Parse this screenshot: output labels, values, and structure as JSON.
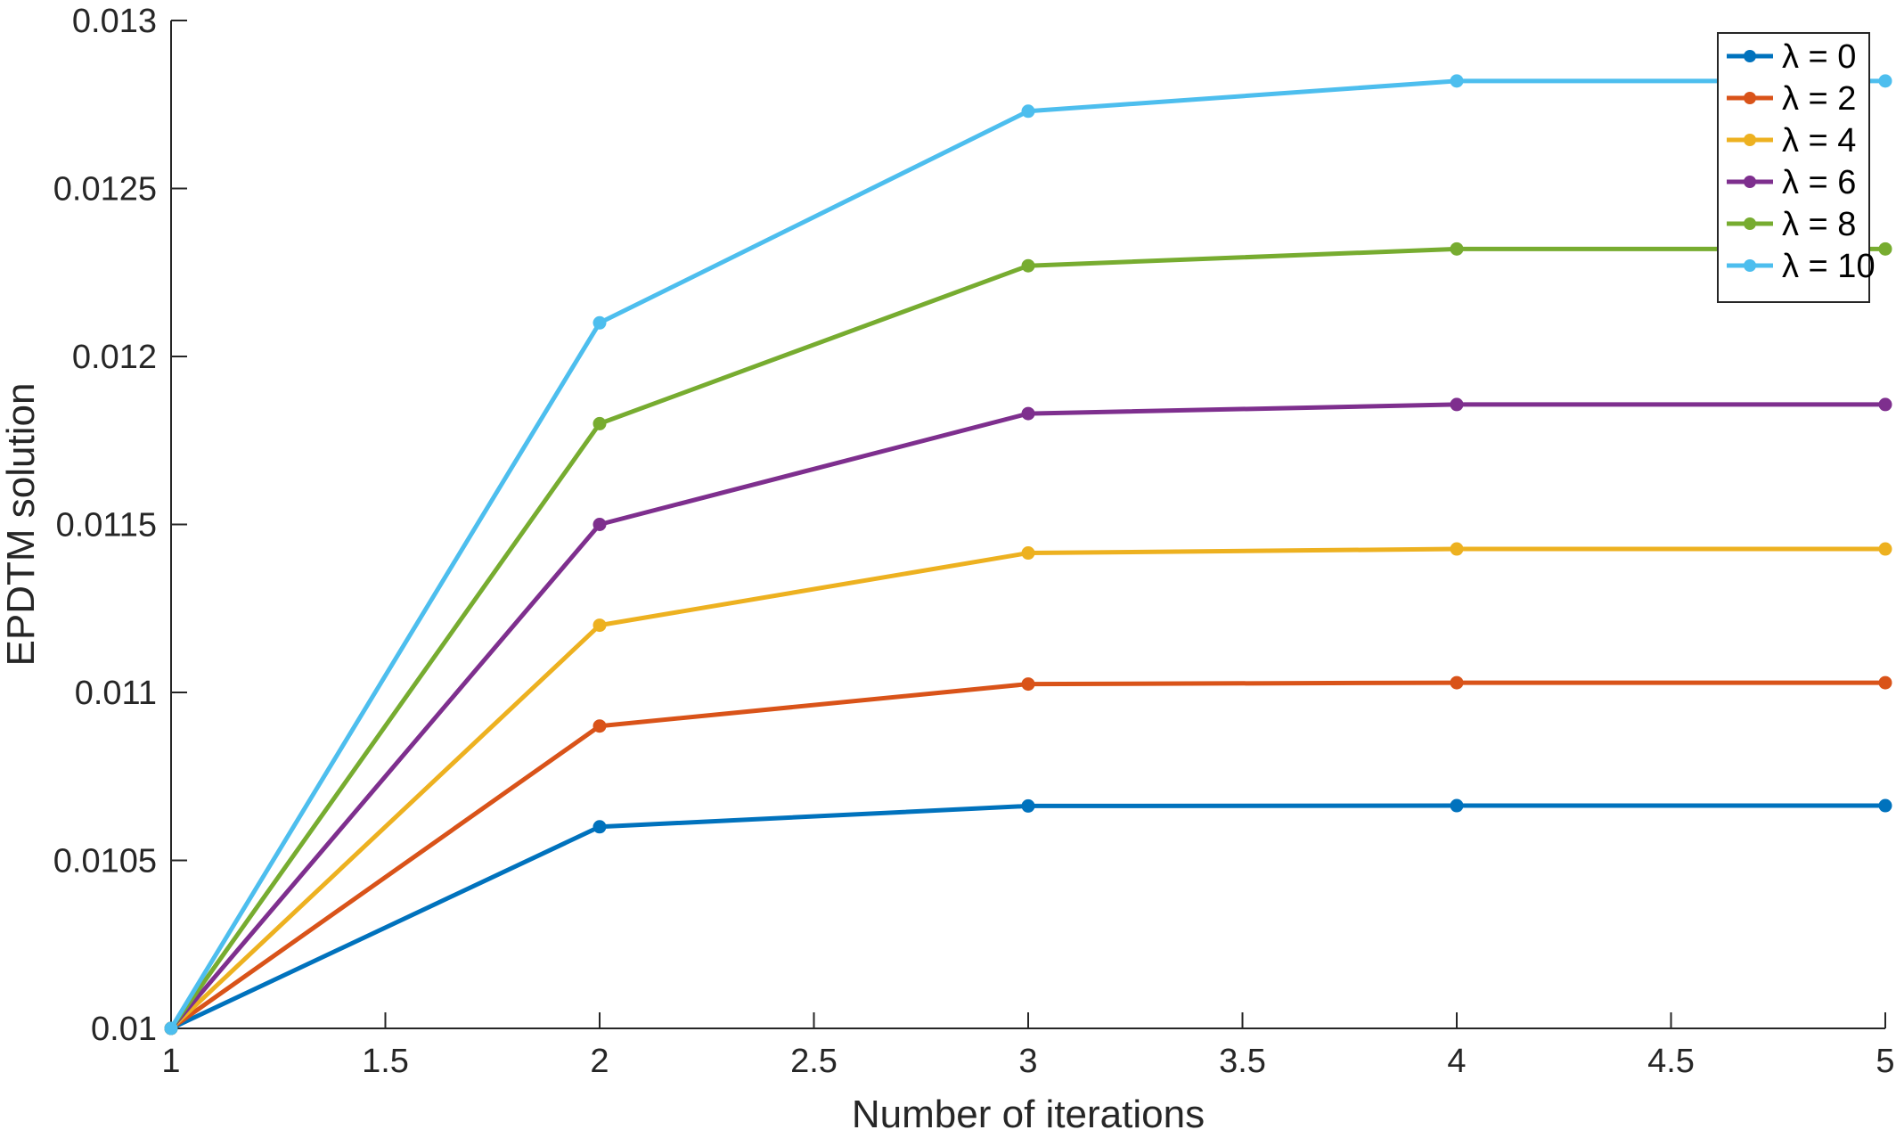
{
  "chart_data": {
    "type": "line",
    "title": "",
    "xlabel": "Number of iterations",
    "ylabel": "EPDTM solution",
    "x": [
      1,
      2,
      3,
      4,
      5
    ],
    "xlim": [
      1,
      5
    ],
    "ylim": [
      0.01,
      0.013
    ],
    "xticks": [
      1,
      1.5,
      2,
      2.5,
      3,
      3.5,
      4,
      4.5,
      5
    ],
    "xtick_labels": [
      "1",
      "1.5",
      "2",
      "2.5",
      "3",
      "3.5",
      "4",
      "4.5",
      "5"
    ],
    "yticks": [
      0.01,
      0.0105,
      0.011,
      0.0115,
      0.012,
      0.0125,
      0.013
    ],
    "ytick_labels": [
      "0.01",
      "0.0105",
      "0.011",
      "0.0115",
      "0.012",
      "0.0125",
      "0.013"
    ],
    "grid": false,
    "legend_position": "top-right",
    "series": [
      {
        "name": "λ = 0",
        "color": "#0072BD",
        "values": [
          0.01,
          0.0106,
          0.010662,
          0.010663,
          0.010663
        ]
      },
      {
        "name": "λ = 2",
        "color": "#D95319",
        "values": [
          0.01,
          0.0109,
          0.011025,
          0.011029,
          0.011029
        ]
      },
      {
        "name": "λ = 4",
        "color": "#EDB120",
        "values": [
          0.01,
          0.0112,
          0.011415,
          0.011427,
          0.011427
        ]
      },
      {
        "name": "λ = 6",
        "color": "#7E2F8E",
        "values": [
          0.01,
          0.0115,
          0.01183,
          0.011857,
          0.011857
        ]
      },
      {
        "name": "λ = 8",
        "color": "#77AC30",
        "values": [
          0.01,
          0.0118,
          0.01227,
          0.01232,
          0.01232
        ]
      },
      {
        "name": "λ = 10",
        "color": "#4DBEEE",
        "values": [
          0.01,
          0.0121,
          0.01273,
          0.01282,
          0.01282
        ]
      }
    ]
  }
}
